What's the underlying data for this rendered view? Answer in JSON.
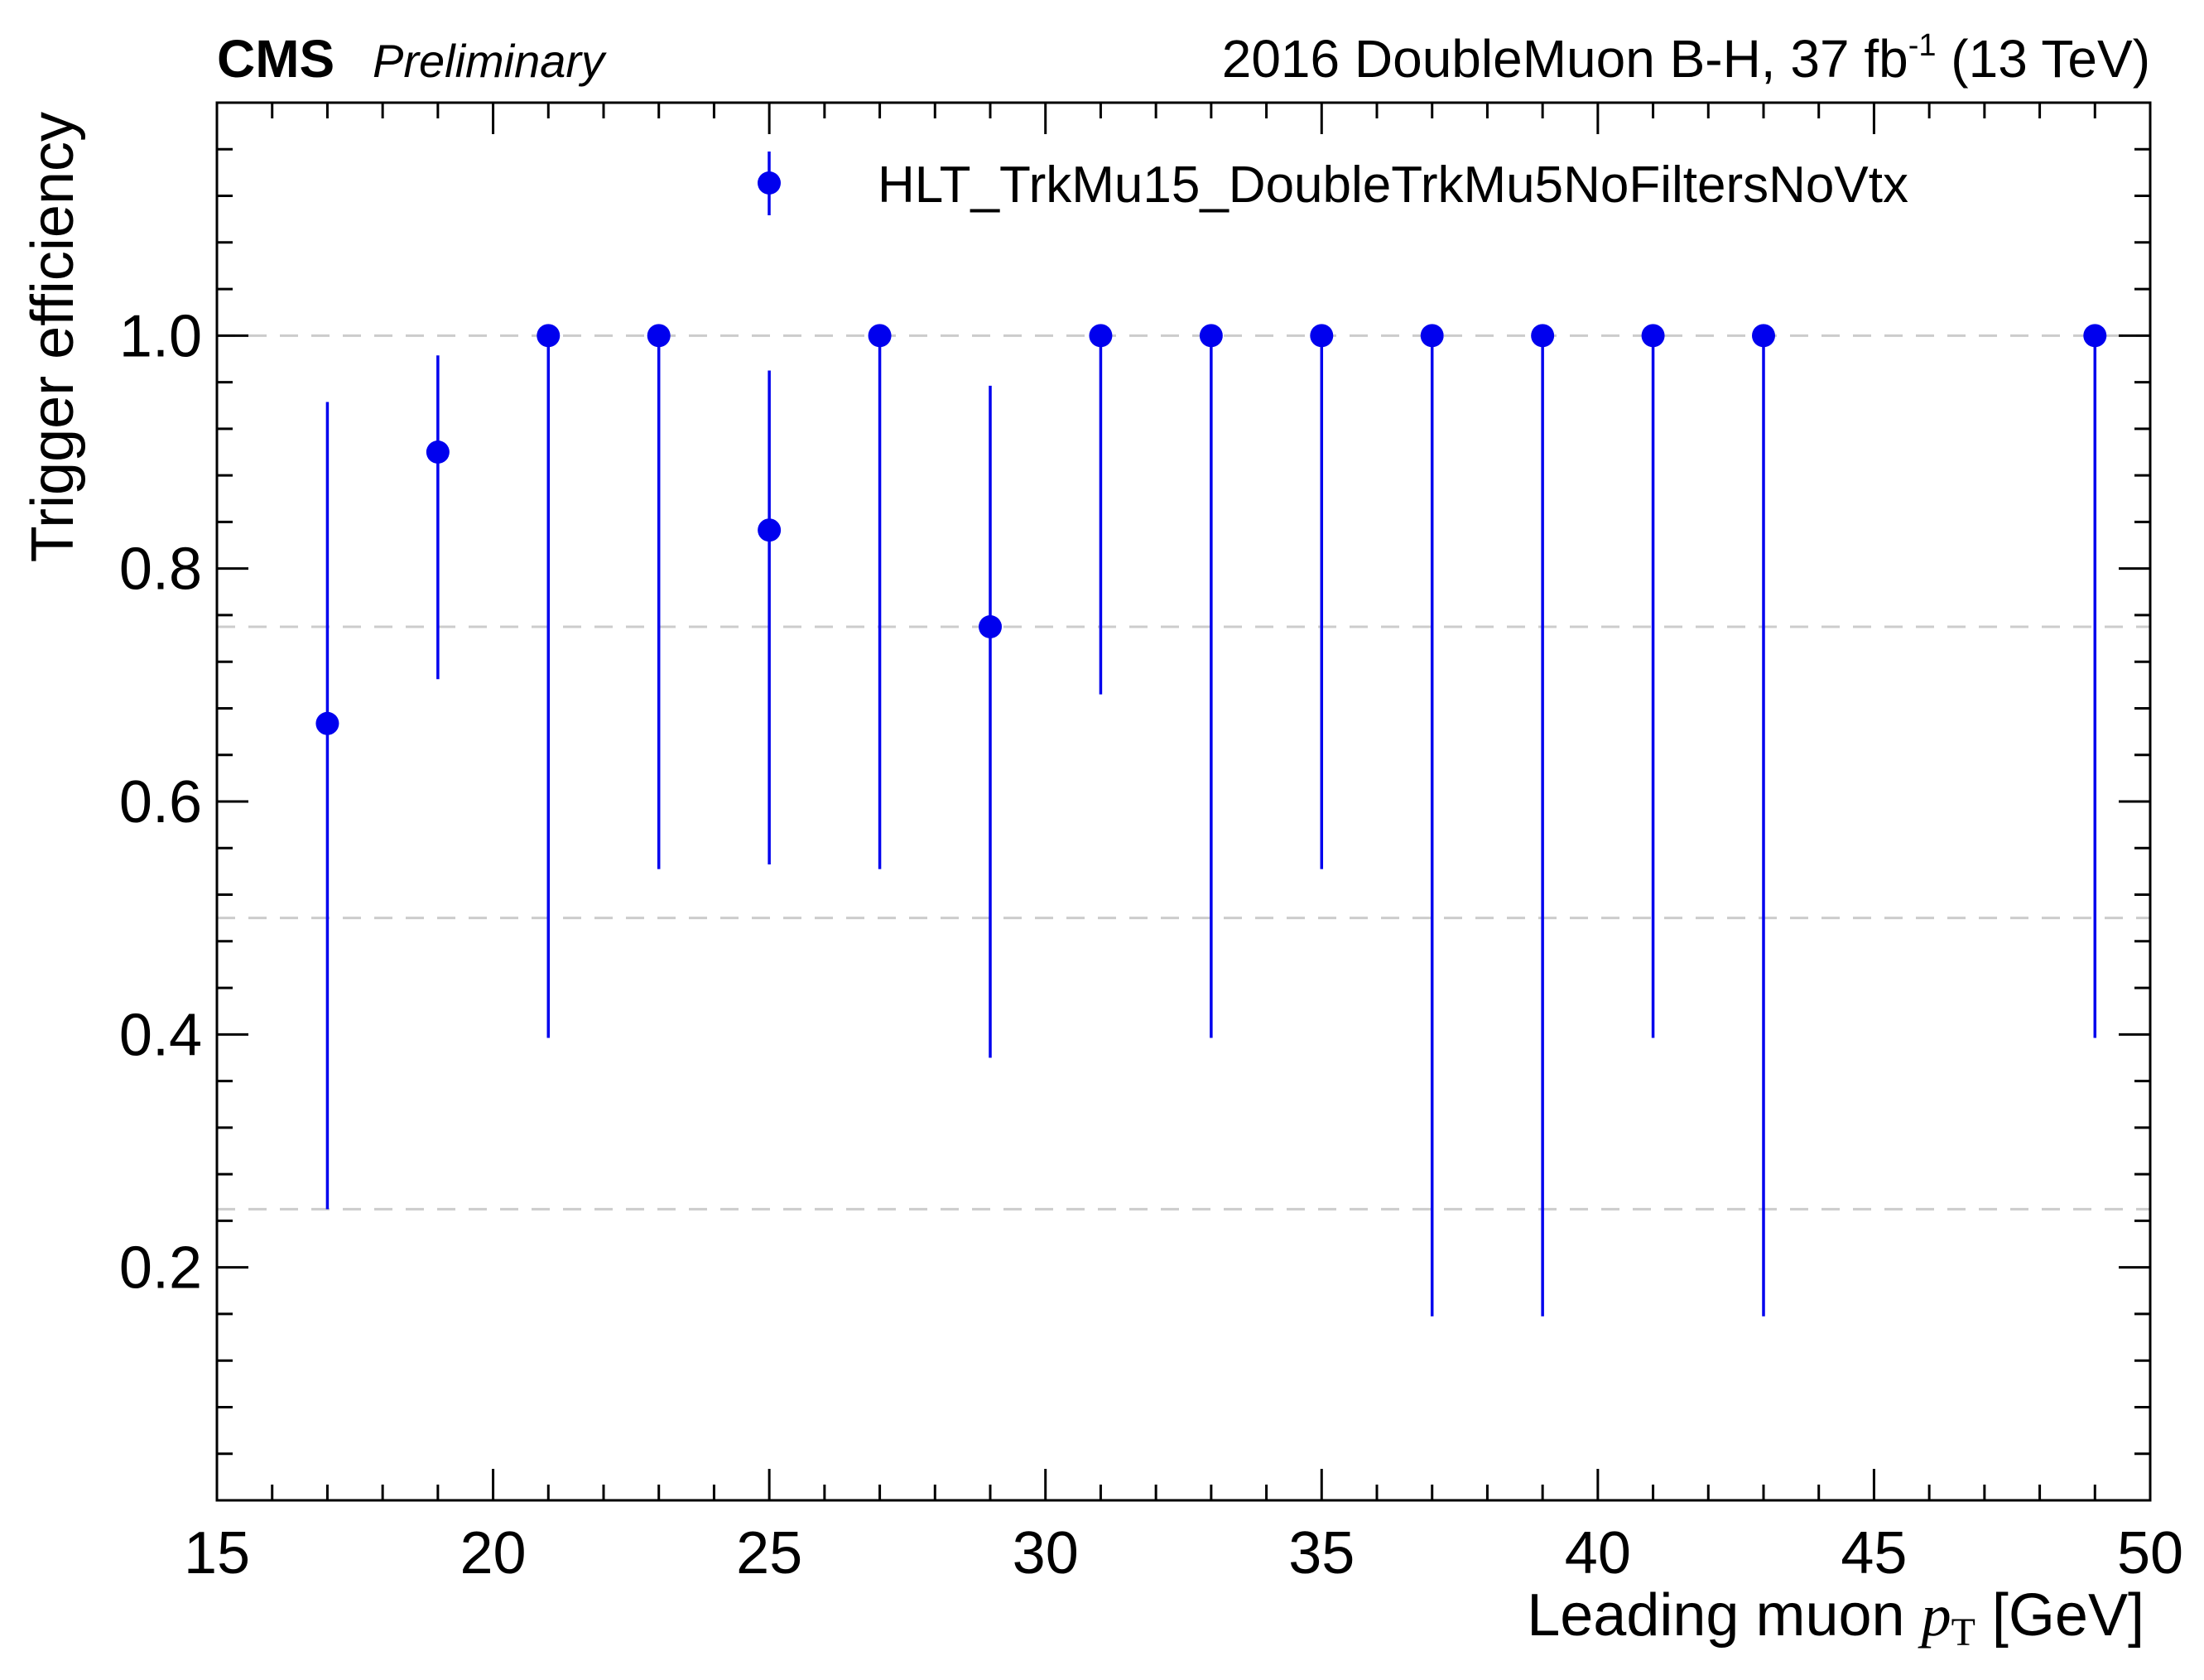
{
  "header": {
    "experiment": "CMS",
    "status": "Preliminary",
    "lumi_text": "2016 DoubleMuon B-H, 37 fb",
    "lumi_sup": "-1",
    "energy_text": " (13 TeV)"
  },
  "colors": {
    "marker": "#0000ee",
    "grid": "#cccccc",
    "frame": "#000000"
  },
  "chart_data": {
    "type": "scatter",
    "title": "",
    "xlabel_prefix": "Leading muon ",
    "xlabel_var": "p",
    "xlabel_sub": "T",
    "xlabel_unit": " [GeV]",
    "ylabel": "Trigger efficiency",
    "xlim": [
      15,
      50
    ],
    "ylim": [
      0,
      1.2
    ],
    "x_ticks": [
      15,
      20,
      25,
      30,
      35,
      40,
      45,
      50
    ],
    "x_tick_labels": [
      "15",
      "20",
      "25",
      "30",
      "35",
      "40",
      "45",
      "50"
    ],
    "y_ticks": [
      0.2,
      0.4,
      0.6,
      0.8,
      1.0
    ],
    "y_tick_labels": [
      "0.2",
      "0.4",
      "0.6",
      "0.8",
      "1.0"
    ],
    "grid_lines_y": [
      0.25,
      0.5,
      0.75,
      1.0
    ],
    "grid_style": "dashed",
    "legend_position": "top-right",
    "series": [
      {
        "name": "HLT_TrkMu15_DoubleTrkMu5NoFiltersNoVtx",
        "x": [
          17,
          19,
          21,
          23,
          25,
          27,
          29,
          31,
          33,
          35,
          37,
          39,
          41,
          43,
          49
        ],
        "y": [
          0.667,
          0.9,
          1.0,
          1.0,
          0.833,
          1.0,
          0.75,
          1.0,
          1.0,
          1.0,
          1.0,
          1.0,
          1.0,
          1.0,
          1.0
        ],
        "y_low": [
          0.25,
          0.705,
          0.397,
          0.542,
          0.546,
          0.542,
          0.38,
          0.692,
          0.397,
          0.542,
          0.158,
          0.158,
          0.397,
          0.158,
          0.397
        ],
        "y_high": [
          0.943,
          0.983,
          1.0,
          1.0,
          0.97,
          1.0,
          0.957,
          1.0,
          1.0,
          1.0,
          1.0,
          1.0,
          1.0,
          1.0,
          1.0
        ]
      }
    ]
  }
}
